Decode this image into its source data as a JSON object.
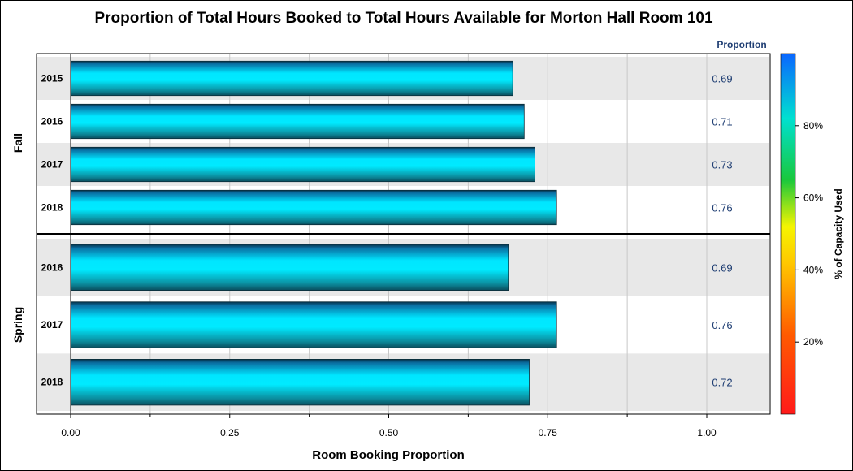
{
  "chart_data": {
    "type": "bar",
    "orientation": "horizontal",
    "title": "Proportion of Total Hours Booked to Total Hours Available for Morton Hall Room 101",
    "xlabel": "Room Booking Proportion",
    "value_column_title": "Proportion",
    "xlim": [
      0,
      1.1
    ],
    "x_ticks": [
      "0.00",
      "0.25",
      "0.50",
      "0.75",
      "1.00"
    ],
    "grid": true,
    "groups": [
      {
        "name": "Fall",
        "categories": [
          "2015",
          "2016",
          "2017",
          "2018"
        ],
        "values": [
          0.695,
          0.713,
          0.73,
          0.764
        ],
        "labels": [
          "0.69",
          "0.71",
          "0.73",
          "0.76"
        ]
      },
      {
        "name": "Spring",
        "categories": [
          "2016",
          "2017",
          "2018"
        ],
        "values": [
          0.688,
          0.764,
          0.721
        ],
        "labels": [
          "0.69",
          "0.76",
          "0.72"
        ]
      }
    ],
    "color_legend": {
      "label": "% of Capacity Used",
      "ticks": [
        "20%",
        "40%",
        "60%",
        "80%"
      ],
      "tick_values": [
        20,
        40,
        60,
        80
      ],
      "range": [
        0,
        100
      ],
      "colors": [
        "#ff1a1a",
        "#ff8c00",
        "#ffff00",
        "#19d23c",
        "#00e5e5",
        "#0a66ff"
      ],
      "placement": "right"
    },
    "colors": {
      "bar_light": "#00eaff",
      "bar_dark": "#0a5a6e",
      "band": "#e8e8e8"
    }
  }
}
